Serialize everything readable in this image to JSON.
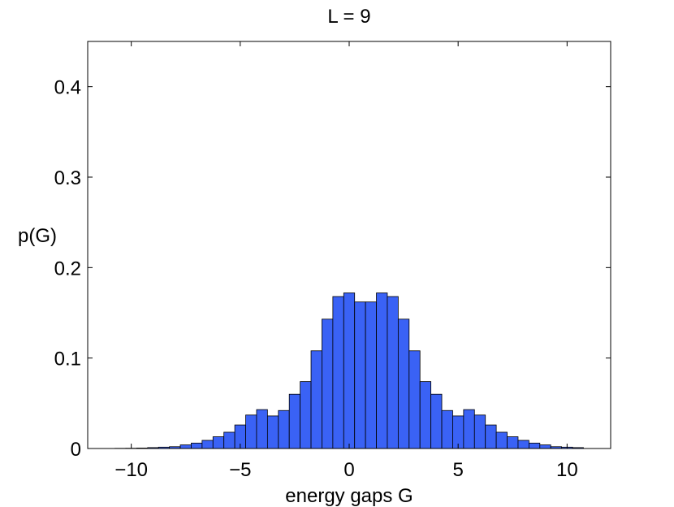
{
  "chart_data": {
    "type": "bar",
    "title": "L = 9",
    "xlabel": "energy gaps G",
    "ylabel": "p(G)",
    "xlim": [
      -12,
      12
    ],
    "ylim": [
      0,
      0.45
    ],
    "xticks": [
      -10,
      -5,
      0,
      5,
      10
    ],
    "xtick_labels": [
      "−10",
      "−5",
      "0",
      "5",
      "10"
    ],
    "yticks": [
      0,
      0.1,
      0.2,
      0.3,
      0.4
    ],
    "ytick_labels": [
      "0",
      "0.1",
      "0.2",
      "0.3",
      "0.4"
    ],
    "grid": false,
    "bar_color": "#3a62f5",
    "edge_color": "#000000",
    "bin_width": 0.5,
    "bin_centers": [
      -10.5,
      -10,
      -9.5,
      -9,
      -8.5,
      -8,
      -7.5,
      -7,
      -6.5,
      -6,
      -5.5,
      -5,
      -4.5,
      -4,
      -3.5,
      -3,
      -2.5,
      -2,
      -1.5,
      -1,
      -0.5,
      0,
      0.5,
      1,
      1.5,
      2,
      2.5,
      3,
      3.5,
      4,
      4.5,
      5,
      5.5,
      6,
      6.5,
      7,
      7.5,
      8,
      8.5,
      9,
      9.5,
      10,
      10.5
    ],
    "values": [
      0.0002,
      0.0003,
      0.0005,
      0.001,
      0.0015,
      0.002,
      0.004,
      0.006,
      0.009,
      0.013,
      0.018,
      0.026,
      0.037,
      0.043,
      0.036,
      0.042,
      0.06,
      0.074,
      0.108,
      0.143,
      0.168,
      0.172,
      0.162,
      0.162,
      0.172,
      0.168,
      0.143,
      0.108,
      0.074,
      0.06,
      0.042,
      0.036,
      0.043,
      0.037,
      0.026,
      0.018,
      0.013,
      0.009,
      0.006,
      0.004,
      0.002,
      0.0015,
      0.001
    ]
  }
}
